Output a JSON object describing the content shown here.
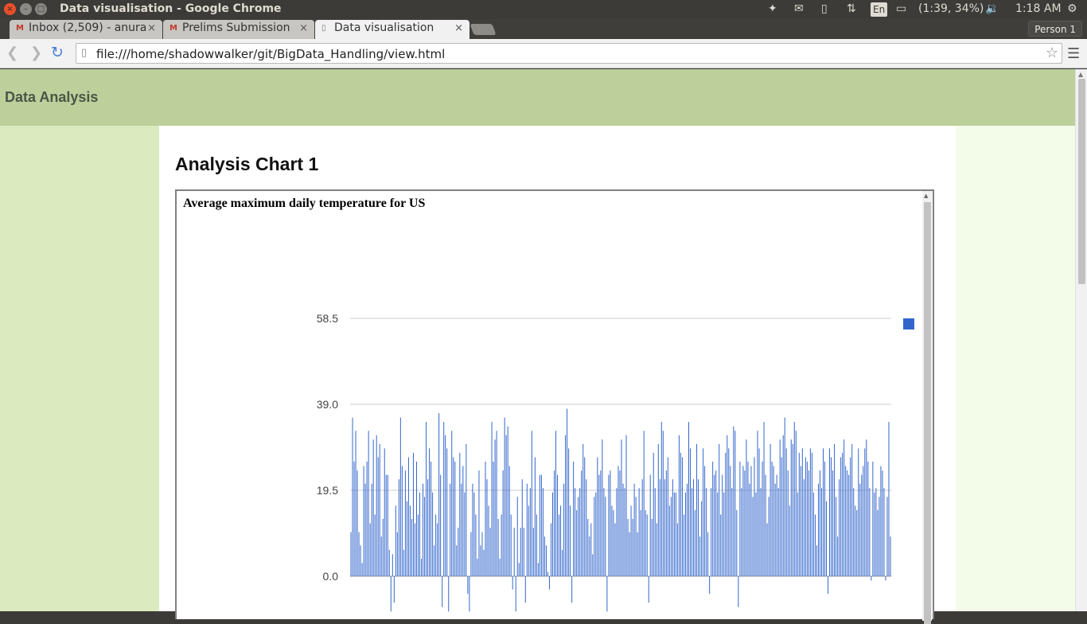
{
  "window": {
    "title": "Data visualisation - Google Chrome",
    "close_icon": "×",
    "min_icon": "–",
    "max_icon": "□"
  },
  "tray": {
    "keyboard_layout": "En",
    "battery": "(1:39, 34%)",
    "clock": "1:18 AM"
  },
  "tabs": [
    {
      "label": "Inbox (2,509) - anura",
      "icon": "gmail-icon"
    },
    {
      "label": "Prelims Submission",
      "icon": "gmail-icon"
    },
    {
      "label": "Data visualisation",
      "icon": "page-icon"
    }
  ],
  "profile": {
    "label": "Person 1"
  },
  "omnibox": {
    "url": "file:///home/shadowwalker/git/BigData_Handling/view.html"
  },
  "site": {
    "title": "Data Analysis",
    "heading": "Analysis Chart 1"
  },
  "chart_data": {
    "type": "bar",
    "title": "Average maximum daily temperature for US",
    "xlabel": "",
    "ylabel": "",
    "ylim": [
      -8.0,
      58.5
    ],
    "yticks": [
      "58.5",
      "39.0",
      "19.5",
      "0.0"
    ],
    "yticks_values": [
      58.5,
      39.0,
      19.5,
      0.0
    ],
    "grid": true,
    "legend": "right",
    "color": "#3366cc",
    "series": [
      {
        "values": [
          10,
          36,
          26,
          33,
          24,
          10,
          7,
          3,
          25,
          21,
          26,
          33,
          12,
          21,
          31,
          14,
          32,
          27,
          30,
          9,
          13,
          29,
          23,
          23,
          6,
          -8,
          5,
          -6,
          16,
          10,
          22,
          36,
          25,
          6,
          24,
          17,
          27,
          16,
          13,
          28,
          12,
          26,
          14,
          19,
          4,
          21,
          18,
          35,
          22,
          29,
          26,
          19,
          7,
          14,
          12,
          37,
          23,
          -7,
          35,
          32,
          29,
          -8,
          21,
          33,
          27,
          26,
          7,
          11,
          28,
          21,
          25,
          19,
          30,
          -4,
          -8,
          10,
          21,
          19,
          14,
          4,
          24,
          7,
          10,
          6,
          26,
          22,
          16,
          11,
          35,
          26,
          31,
          33,
          13,
          4,
          14,
          24,
          36,
          32,
          34,
          25,
          14,
          -3,
          11,
          -8,
          18,
          3,
          11,
          22,
          11,
          -6,
          21,
          16,
          20,
          33,
          11,
          27,
          14,
          3,
          23,
          23,
          20,
          9,
          7,
          1,
          -3,
          12,
          19,
          24,
          33,
          23,
          14,
          16,
          6,
          21,
          32,
          38,
          29,
          16,
          -6,
          26,
          20,
          15,
          18,
          20,
          24,
          30,
          27,
          22,
          13,
          9,
          12,
          5,
          18,
          19,
          27,
          23,
          24,
          31,
          20,
          18,
          -8,
          23,
          24,
          16,
          15,
          12,
          20,
          25,
          24,
          31,
          21,
          20,
          32,
          13,
          10,
          16,
          13,
          21,
          18,
          10,
          20,
          15,
          22,
          33,
          15,
          14,
          -6,
          23,
          13,
          28,
          20,
          12,
          30,
          22,
          35,
          33,
          22,
          24,
          27,
          16,
          18,
          22,
          19,
          19,
          12,
          32,
          28,
          27,
          14,
          19,
          21,
          35,
          29,
          20,
          22,
          15,
          30,
          22,
          9,
          17,
          29,
          25,
          20,
          10,
          -4,
          20,
          26,
          23,
          24,
          19,
          30,
          14,
          23,
          19,
          28,
          32,
          29,
          25,
          20,
          34,
          33,
          15,
          -7,
          26,
          20,
          25,
          24,
          31,
          26,
          21,
          25,
          18,
          27,
          19,
          33,
          29,
          20,
          26,
          35,
          23,
          12,
          18,
          30,
          26,
          25,
          21,
          23,
          20,
          31,
          27,
          32,
          36,
          29,
          24,
          16,
          31,
          30,
          35,
          33,
          19,
          28,
          25,
          29,
          22,
          27,
          26,
          24,
          29,
          28,
          19,
          14,
          7,
          21,
          24,
          20,
          29,
          26,
          17,
          -4,
          29,
          27,
          24,
          30,
          18,
          9,
          22,
          27,
          28,
          31,
          25,
          24,
          23,
          27,
          30,
          20,
          16,
          15,
          29,
          21,
          23,
          25,
          29,
          31,
          26,
          20,
          -1,
          26,
          19,
          20,
          15,
          18,
          25,
          24,
          20,
          -1,
          18,
          35,
          9
        ]
      }
    ]
  }
}
